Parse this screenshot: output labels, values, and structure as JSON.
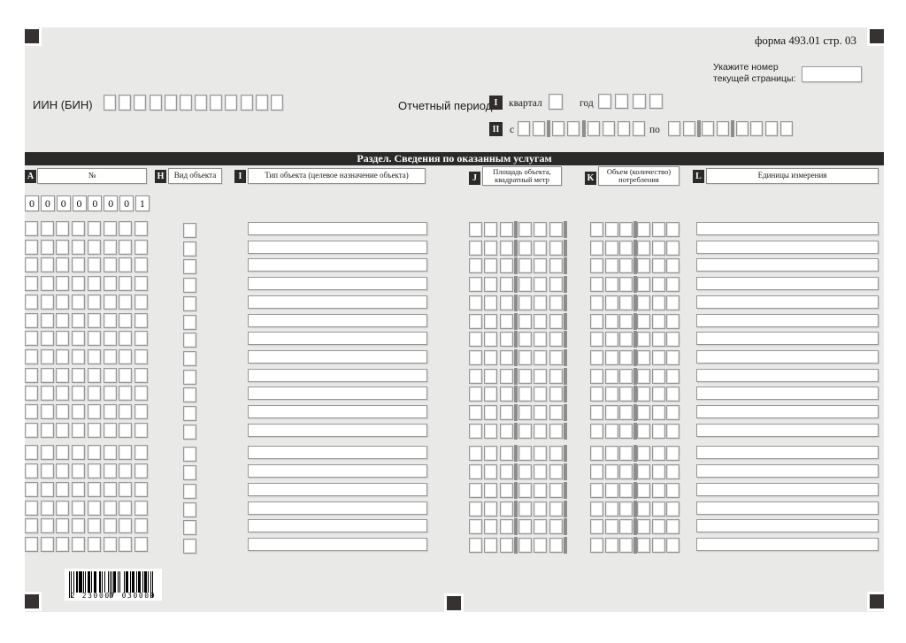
{
  "form": {
    "title": "форма 493.01 стр. 03"
  },
  "page_hint": {
    "line1": "Укажите номер",
    "line2": "текущей страницы:"
  },
  "iin": {
    "label": "ИИН (БИН)",
    "cells": 12
  },
  "period": {
    "label": "Отчетный период:",
    "quarter_marker": "I",
    "quarter_label": "квартал",
    "year_label": "год",
    "year_cells": 4,
    "range_marker": "II",
    "from_label": "с",
    "to_label": "по",
    "date_cells": 8
  },
  "section": {
    "title": "Раздел. Сведения по оказанным услугам"
  },
  "columns": [
    {
      "key": "A",
      "label": "№"
    },
    {
      "key": "H",
      "label": "Вид объекта"
    },
    {
      "key": "I",
      "label": "Тип объекта (целевое назначение объекта)"
    },
    {
      "key": "J",
      "label": "Площадь объекта, квадратный метр"
    },
    {
      "key": "K",
      "label": "Объем (количество) потребления"
    },
    {
      "key": "L",
      "label": "Единицы измерения"
    }
  ],
  "first_row_digits": [
    "0",
    "0",
    "0",
    "0",
    "0",
    "0",
    "0",
    "1"
  ],
  "table": {
    "rows": 18,
    "group_break_after": 12,
    "a_cells": 8,
    "jk_cells": 6
  },
  "barcode": {
    "digits": "2230007030009",
    "display": "2 230007 030009"
  },
  "colors": {
    "form_bg": "#e9e9e8",
    "ink": "#2b2a28",
    "separator": "#8d8d8d",
    "cell_border": "#979797"
  }
}
